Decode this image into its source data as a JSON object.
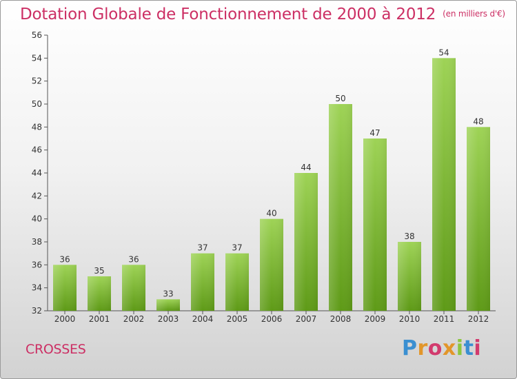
{
  "header": {
    "title": "Dotation Globale de Fonctionnement de 2000 à 2012",
    "subtitle": "(en milliers d'€)"
  },
  "footer": {
    "commune": "CROSSES",
    "brand": "Proxiti",
    "brand_letters": [
      "P",
      "r",
      "o",
      "x",
      "i",
      "t",
      "i"
    ]
  },
  "colors": {
    "title": "#cc2f64",
    "bar_top": "#9ed356",
    "bar_bottom": "#5e9a17",
    "brand_blue": "#3a8fd1",
    "brand_orange": "#e2962a",
    "brand_green": "#8cc63f",
    "brand_pink": "#d23b6e"
  },
  "chart_data": {
    "type": "bar",
    "title": "Dotation Globale de Fonctionnement de 2000 à 2012",
    "subtitle": "(en milliers d'€)",
    "categories": [
      "2000",
      "2001",
      "2002",
      "2003",
      "2004",
      "2005",
      "2006",
      "2007",
      "2008",
      "2009",
      "2010",
      "2011",
      "2012"
    ],
    "values": [
      36,
      35,
      36,
      33,
      37,
      37,
      40,
      44,
      50,
      47,
      38,
      54,
      48
    ],
    "ylim": [
      32,
      56
    ],
    "yticks": [
      32,
      34,
      36,
      38,
      40,
      42,
      44,
      46,
      48,
      50,
      52,
      54,
      56
    ],
    "grid": false,
    "data_labels": true
  }
}
